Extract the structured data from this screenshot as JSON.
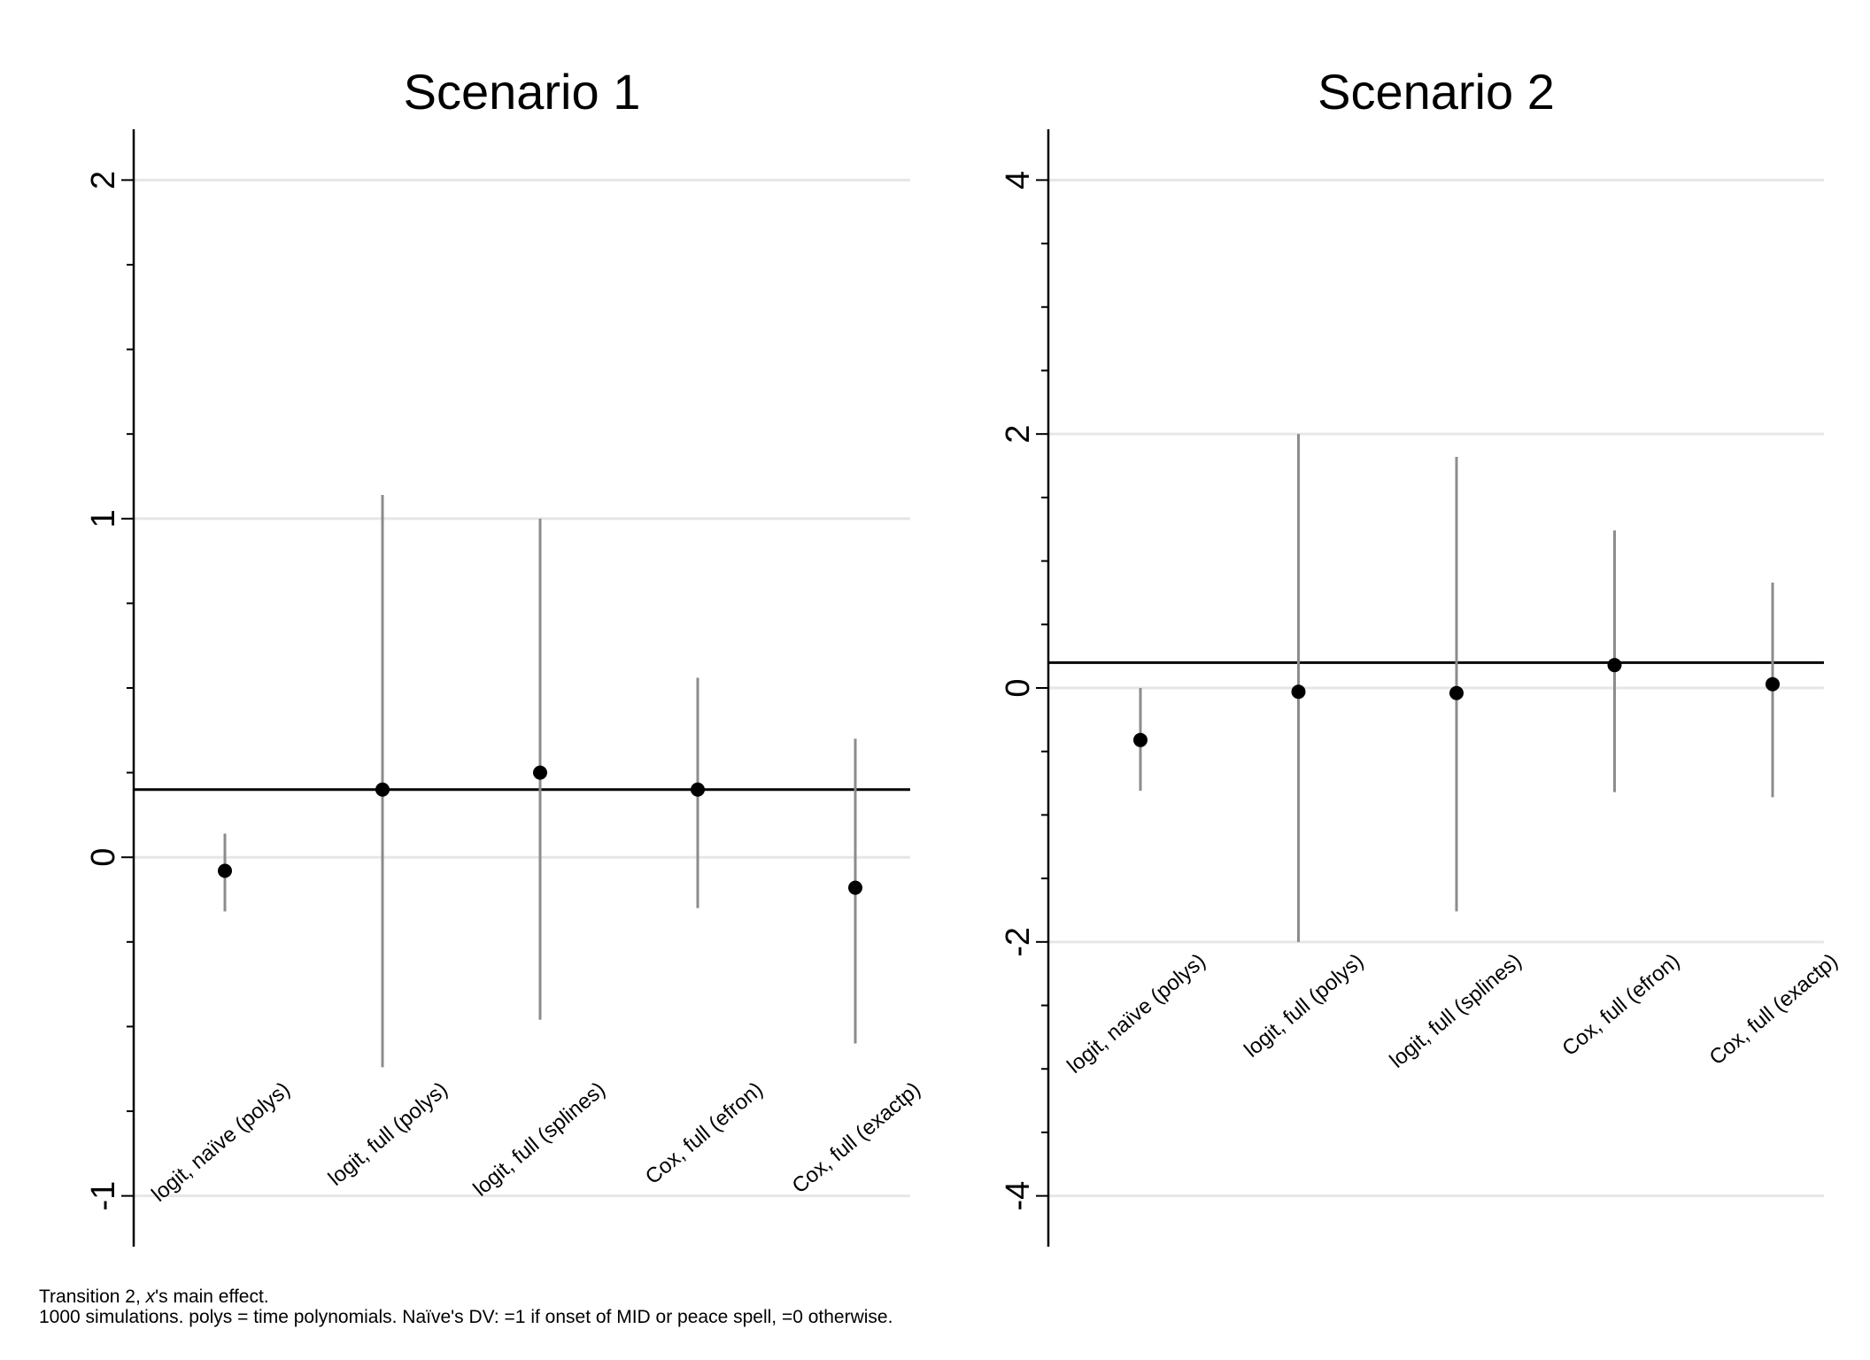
{
  "notes": {
    "line1_pre": "Transition 2, ",
    "line1_italic": "x",
    "line1_post": "'s main effect.",
    "line2": "1000 simulations.  polys = time polynomials.  Naïve's DV: =1 if onset of MID or peace spell, =0 otherwise."
  },
  "chart_data": [
    {
      "type": "scatter",
      "title": "Scenario 1",
      "xlabel": "",
      "ylabel": "",
      "categories": [
        "logit, naïve (polys)",
        "logit, full (polys)",
        "logit, full (splines)",
        "Cox, full (efron)",
        "Cox, full (exactp)"
      ],
      "estimates": [
        -0.04,
        0.2,
        0.25,
        0.2,
        -0.09
      ],
      "ci_low": [
        -0.16,
        -0.62,
        -0.48,
        -0.15,
        -0.55
      ],
      "ci_high": [
        0.07,
        1.07,
        1.0,
        0.53,
        0.35
      ],
      "reference_line": 0.2,
      "yticks": [
        -1,
        0,
        1,
        2
      ],
      "ylim": [
        -1.15,
        2.15
      ],
      "minor_step": 0.25,
      "grid": true,
      "legend": "none",
      "colors": {
        "point": "#000000",
        "ci": "#8c8c8c",
        "grid": "#e6e6e6",
        "ref": "#000000"
      }
    },
    {
      "type": "scatter",
      "title": "Scenario 2",
      "xlabel": "",
      "ylabel": "",
      "categories": [
        "logit, naïve (polys)",
        "logit, full (polys)",
        "logit, full (splines)",
        "Cox, full (efron)",
        "Cox, full (exactp)"
      ],
      "estimates": [
        -0.41,
        -0.03,
        -0.04,
        0.18,
        0.03
      ],
      "ci_low": [
        -0.81,
        -2.0,
        -1.76,
        -0.82,
        -0.86
      ],
      "ci_high": [
        0.0,
        2.0,
        1.82,
        1.24,
        0.83
      ],
      "reference_line": 0.2,
      "yticks": [
        -4,
        -2,
        0,
        2,
        4
      ],
      "ylim": [
        -4.4,
        4.4
      ],
      "minor_step": 0.5,
      "grid": true,
      "legend": "none",
      "colors": {
        "point": "#000000",
        "ci": "#8c8c8c",
        "grid": "#e6e6e6",
        "ref": "#000000"
      }
    }
  ]
}
